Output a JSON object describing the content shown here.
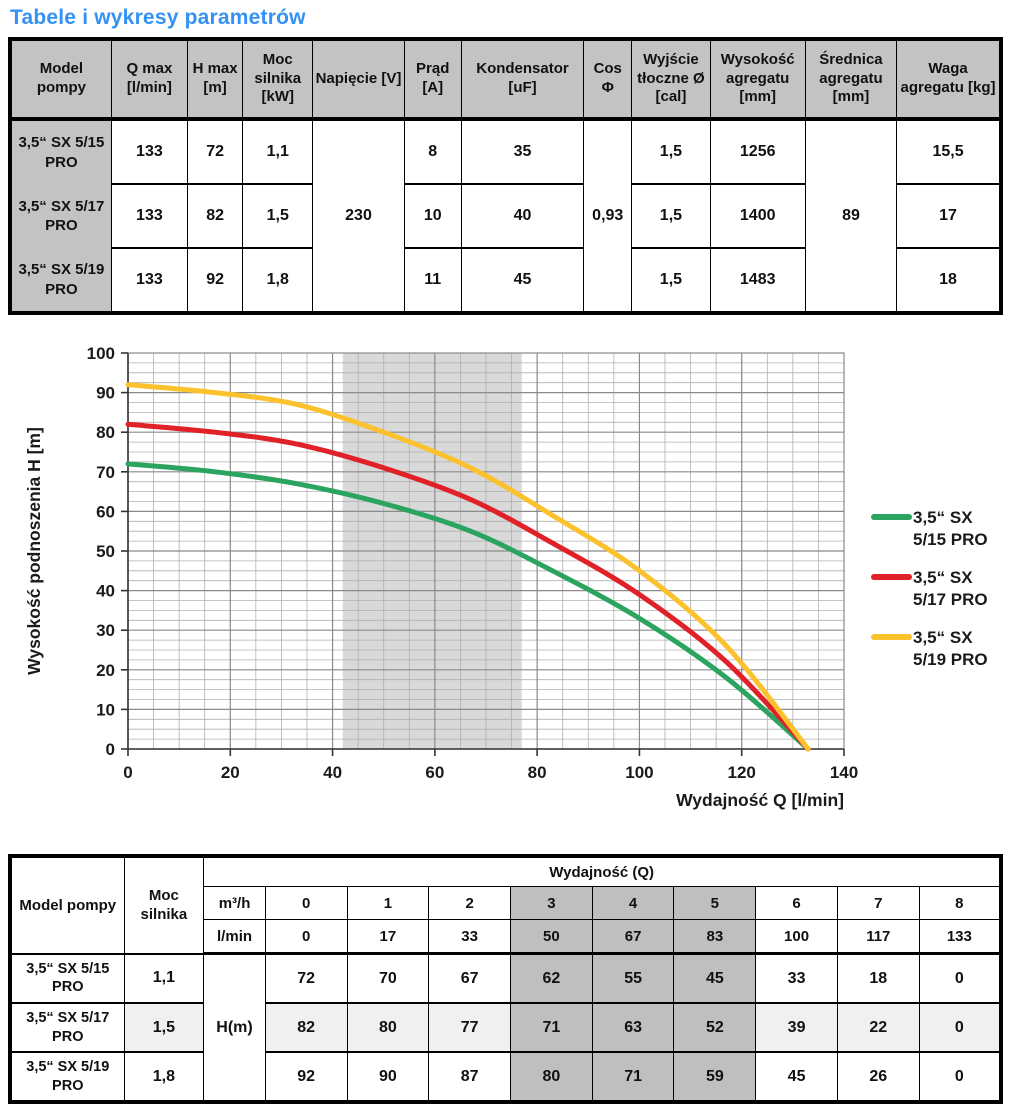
{
  "page_title": "Tabele i wykresy parametrów",
  "colors": {
    "title": "#3492f5",
    "header_bg": "#c3c3c3",
    "band": "#d9d9d9",
    "shade_col": "#bfbfbf",
    "light_row": "#f0f0f0",
    "series_green": "#2aa45f",
    "series_red": "#e02128",
    "series_yellow": "#fcc22d"
  },
  "table1": {
    "headers": [
      "Model pompy",
      "Q max [l/min]",
      "H max [m]",
      "Moc silnika [kW]",
      "Napięcie [V]",
      "Prąd [A]",
      "Kondensator [uF]",
      "Cos Φ",
      "Wyjście tłoczne Ø [cal]",
      "Wysokość agregatu [mm]",
      "Średnica agregatu [mm]",
      "Waga agregatu [kg]"
    ],
    "rows": [
      {
        "model": "3,5“ SX 5/15 PRO",
        "qmax": "133",
        "hmax": "72",
        "moc": "1,1",
        "prad": "8",
        "kond": "35",
        "wyjscie": "1,5",
        "wysokosc": "1256",
        "waga": "15,5"
      },
      {
        "model": "3,5“ SX 5/17 PRO",
        "qmax": "133",
        "hmax": "82",
        "moc": "1,5",
        "prad": "10",
        "kond": "40",
        "wyjscie": "1,5",
        "wysokosc": "1400",
        "waga": "17"
      },
      {
        "model": "3,5“ SX 5/19 PRO",
        "qmax": "133",
        "hmax": "92",
        "moc": "1,8",
        "prad": "11",
        "kond": "45",
        "wyjscie": "1,5",
        "wysokosc": "1483",
        "waga": "18"
      }
    ],
    "merged": {
      "napiecie": "230",
      "cos": "0,93",
      "srednica": "89"
    }
  },
  "chart_data": {
    "type": "line",
    "title": "",
    "xlabel": "Wydajność Q [l/min]",
    "ylabel": "Wysokość podnoszenia H [m]",
    "xlim": [
      0,
      140
    ],
    "ylim": [
      0,
      100
    ],
    "x_major": 20,
    "x_minor": 5,
    "y_major": 10,
    "y_minor": 2.5,
    "x_ticks": [
      0,
      20,
      40,
      60,
      80,
      100,
      120,
      140
    ],
    "y_ticks": [
      0,
      10,
      20,
      30,
      40,
      50,
      60,
      70,
      80,
      90,
      100
    ],
    "grid": true,
    "legend_position": "right",
    "band": {
      "from": 42,
      "to": 77,
      "color": "#d9d9d9"
    },
    "x": [
      0,
      17,
      33,
      50,
      67,
      83,
      100,
      117,
      133
    ],
    "series": [
      {
        "name": "3,5“ SX 5/15 PRO",
        "label_lines": [
          "3,5“ SX",
          "5/15 PRO"
        ],
        "color": "#2aa45f",
        "values": [
          72,
          70,
          67,
          62,
          55,
          45,
          33,
          18,
          0
        ]
      },
      {
        "name": "3,5“ SX 5/17 PRO",
        "label_lines": [
          "3,5“ SX",
          "5/17 PRO"
        ],
        "color": "#e02128",
        "values": [
          82,
          80,
          77,
          71,
          63,
          52,
          39,
          22,
          0
        ]
      },
      {
        "name": "3,5“ SX 5/19 PRO",
        "label_lines": [
          "3,5“ SX",
          "5/19 PRO"
        ],
        "color": "#fcc22d",
        "values": [
          92,
          90,
          87,
          80,
          71,
          59,
          45,
          26,
          0
        ]
      }
    ]
  },
  "table2": {
    "col_model": "Model pompy",
    "col_power": "Moc silnika",
    "span_header": "Wydajność (Q)",
    "unit_row1_label": "m³/h",
    "unit_row1": [
      "0",
      "1",
      "2",
      "3",
      "4",
      "5",
      "6",
      "7",
      "8"
    ],
    "unit_row2_label": "l/min",
    "unit_row2": [
      "0",
      "17",
      "33",
      "50",
      "67",
      "83",
      "100",
      "117",
      "133"
    ],
    "h_label": "H(m)",
    "shaded_cols": [
      3,
      4,
      5
    ],
    "rows": [
      {
        "model": "3,5“ SX 5/15 PRO",
        "power": "1,1",
        "values": [
          "72",
          "70",
          "67",
          "62",
          "55",
          "45",
          "33",
          "18",
          "0"
        ]
      },
      {
        "model": "3,5“ SX 5/17 PRO",
        "power": "1,5",
        "values": [
          "82",
          "80",
          "77",
          "71",
          "63",
          "52",
          "39",
          "22",
          "0"
        ]
      },
      {
        "model": "3,5“ SX 5/19 PRO",
        "power": "1,8",
        "values": [
          "92",
          "90",
          "87",
          "80",
          "71",
          "59",
          "45",
          "26",
          "0"
        ]
      }
    ]
  }
}
